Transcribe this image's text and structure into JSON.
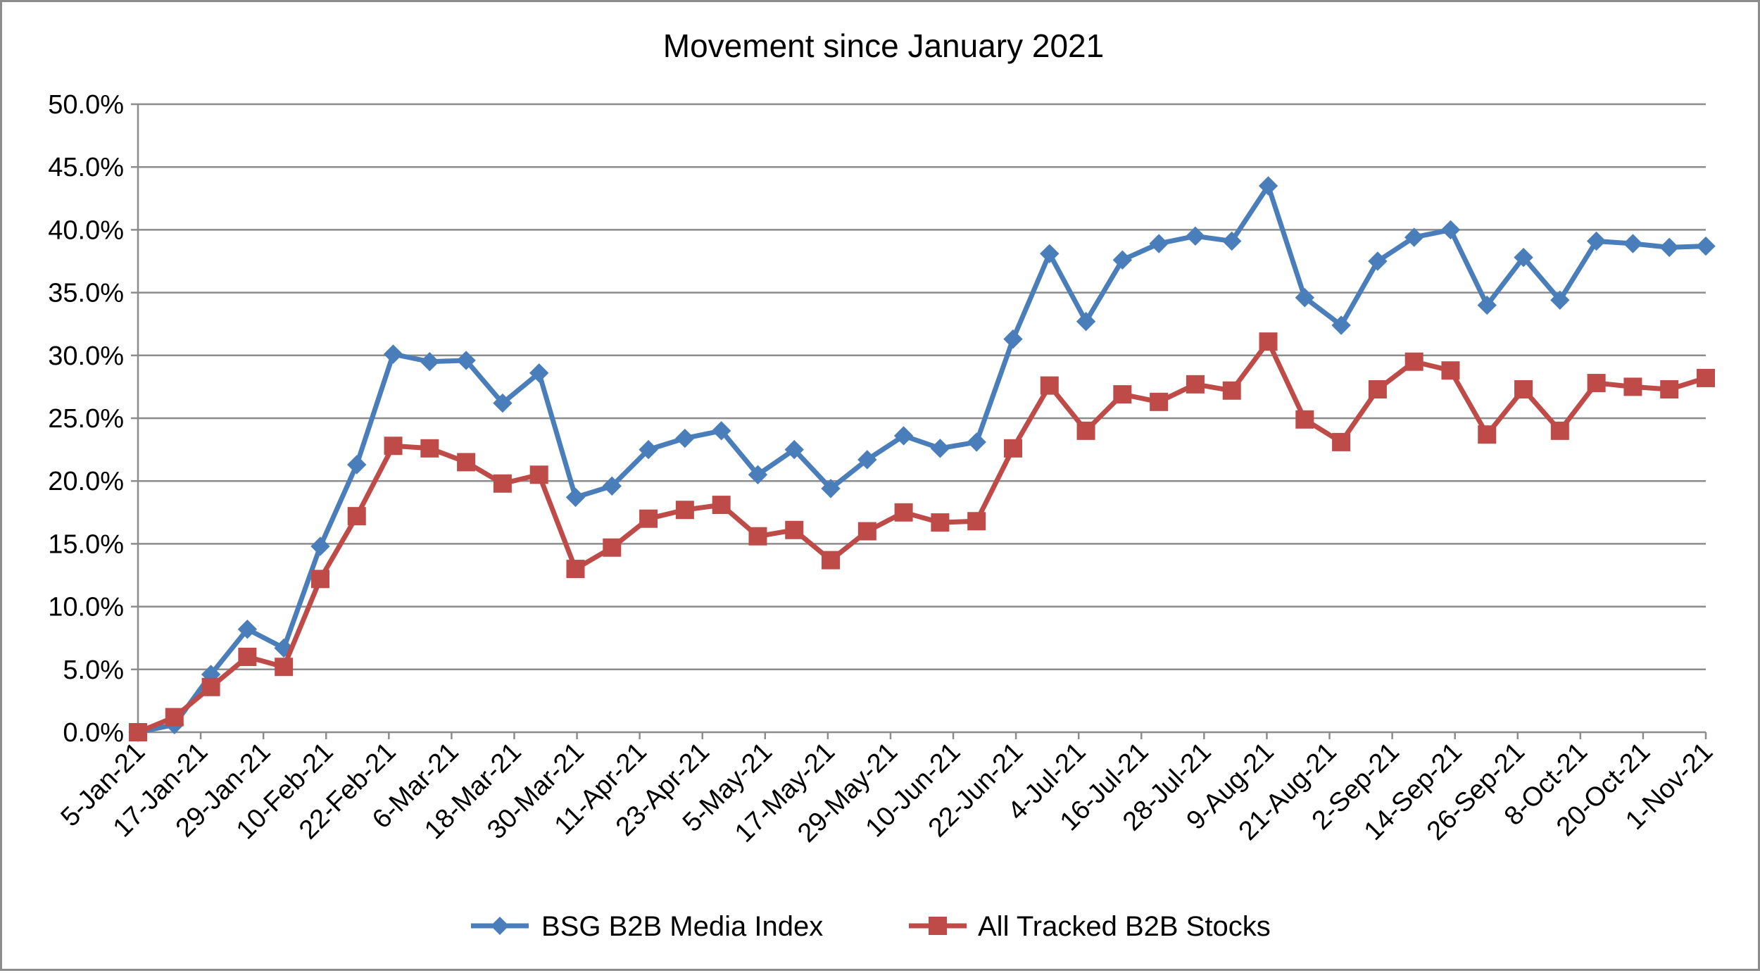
{
  "chart_data": {
    "type": "line",
    "title": "Movement since January 2021",
    "xlabel": "",
    "ylabel": "",
    "ylim": [
      0,
      50
    ],
    "y_ticks": [
      "0.0%",
      "5.0%",
      "10.0%",
      "15.0%",
      "20.0%",
      "25.0%",
      "30.0%",
      "35.0%",
      "40.0%",
      "45.0%",
      "50.0%"
    ],
    "x_tick_labels": [
      "5-Jan-21",
      "17-Jan-21",
      "29-Jan-21",
      "10-Feb-21",
      "22-Feb-21",
      "6-Mar-21",
      "18-Mar-21",
      "30-Mar-21",
      "11-Apr-21",
      "23-Apr-21",
      "5-May-21",
      "17-May-21",
      "29-May-21",
      "10-Jun-21",
      "22-Jun-21",
      "4-Jul-21",
      "16-Jul-21",
      "28-Jul-21",
      "9-Aug-21",
      "21-Aug-21",
      "2-Sep-21",
      "14-Sep-21",
      "26-Sep-21",
      "8-Oct-21",
      "20-Oct-21",
      "1-Nov-21"
    ],
    "grid": true,
    "legend_position": "bottom",
    "series": [
      {
        "name": "BSG B2B Media Index",
        "color": "#4a7ebb",
        "marker": "diamond",
        "values": [
          0.0,
          0.6,
          4.6,
          8.2,
          6.7,
          14.8,
          21.3,
          30.1,
          29.5,
          29.6,
          26.2,
          28.6,
          18.7,
          19.6,
          22.5,
          23.4,
          24.0,
          20.5,
          22.5,
          19.4,
          21.7,
          23.6,
          22.6,
          23.1,
          31.3,
          38.1,
          32.7,
          37.6,
          38.9,
          39.5,
          39.1,
          43.5,
          34.6,
          32.4,
          37.5,
          39.4,
          40.0,
          34.0,
          37.8,
          34.4,
          39.1,
          38.9,
          38.6,
          38.7
        ]
      },
      {
        "name": "All Tracked B2B Stocks",
        "color": "#be4b48",
        "marker": "square",
        "values": [
          0.0,
          1.2,
          3.6,
          6.0,
          5.2,
          12.2,
          17.2,
          22.8,
          22.6,
          21.5,
          19.8,
          20.5,
          13.0,
          14.7,
          17.0,
          17.7,
          18.1,
          15.6,
          16.1,
          13.7,
          16.0,
          17.5,
          16.7,
          16.8,
          22.6,
          27.6,
          24.0,
          26.9,
          26.3,
          27.7,
          27.2,
          31.1,
          24.9,
          23.1,
          27.3,
          29.5,
          28.8,
          23.7,
          27.3,
          24.0,
          27.8,
          27.5,
          27.3,
          28.2
        ]
      }
    ]
  }
}
